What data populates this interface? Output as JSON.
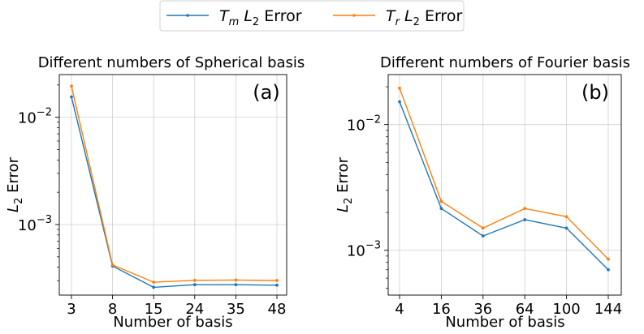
{
  "legend": {
    "entries": [
      {
        "name": "T_m L_2 Error",
        "base": "T",
        "base_sub": "m",
        "mid": "L",
        "mid_sub": "2",
        "suffix": "Error",
        "color": "#1f77b4"
      },
      {
        "name": "T_r L_2 Error",
        "base": "T",
        "base_sub": "r",
        "mid": "L",
        "mid_sub": "2",
        "suffix": "Error",
        "color": "#ff7f0e"
      }
    ]
  },
  "chart_data": [
    {
      "type": "line",
      "panel_label": "(a)",
      "title": "Different numbers of Spherical basis",
      "xlabel": "Number of basis",
      "ylabel": "L_2 Error",
      "ylabel_parts": {
        "base": "L",
        "sub": "2",
        "suffix": "Error"
      },
      "yscale": "log",
      "ylim": [
        0.00022,
        0.025
      ],
      "yticks": [
        0.01,
        0.001
      ],
      "ytick_labels": [
        {
          "base": "10",
          "exp": "−2"
        },
        {
          "base": "10",
          "exp": "−3"
        }
      ],
      "categories": [
        "3",
        "8",
        "15",
        "24",
        "35",
        "48"
      ],
      "series": [
        {
          "name": "T_m L_2 Error",
          "color": "#1f77b4",
          "values": [
            0.0155,
            0.00041,
            0.00026,
            0.000275,
            0.000275,
            0.000272
          ]
        },
        {
          "name": "T_r L_2 Error",
          "color": "#ff7f0e",
          "values": [
            0.0195,
            0.00042,
            0.00029,
            0.000302,
            0.000304,
            0.000301
          ]
        }
      ],
      "grid": true
    },
    {
      "type": "line",
      "panel_label": "(b)",
      "title": "Different numbers of Fourier basis",
      "xlabel": "Number of basis",
      "ylabel": "L_2 Error",
      "ylabel_parts": {
        "base": "L",
        "sub": "2",
        "suffix": "Error"
      },
      "yscale": "log",
      "ylim": [
        0.00044,
        0.025
      ],
      "yticks": [
        0.01,
        0.001
      ],
      "ytick_labels": [
        {
          "base": "10",
          "exp": "−2"
        },
        {
          "base": "10",
          "exp": "−3"
        }
      ],
      "categories": [
        "4",
        "16",
        "36",
        "64",
        "100",
        "144"
      ],
      "series": [
        {
          "name": "T_m L_2 Error",
          "color": "#1f77b4",
          "values": [
            0.0152,
            0.00215,
            0.0013,
            0.00175,
            0.0015,
            0.0007
          ]
        },
        {
          "name": "T_r L_2 Error",
          "color": "#ff7f0e",
          "values": [
            0.0195,
            0.00245,
            0.0015,
            0.00215,
            0.00185,
            0.00085
          ]
        }
      ],
      "grid": true
    }
  ]
}
